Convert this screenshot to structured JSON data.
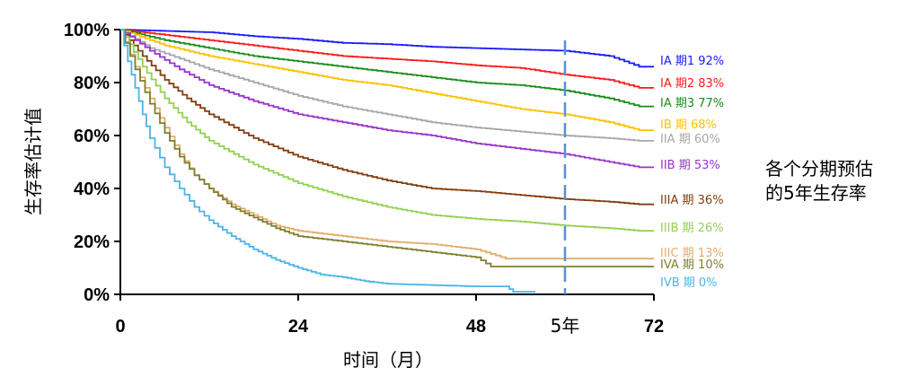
{
  "chart_data": {
    "type": "line",
    "title": "",
    "xlabel": "时间（月）",
    "ylabel": "生存率估计值",
    "xlim": [
      0,
      72
    ],
    "ylim": [
      0,
      100
    ],
    "x_ticks": [
      "0",
      "24",
      "48",
      "72"
    ],
    "x_tick_values": [
      0,
      24,
      48,
      72
    ],
    "y_ticks": [
      "0%",
      "20%",
      "40%",
      "60%",
      "80%",
      "100%"
    ],
    "y_tick_values": [
      0,
      20,
      40,
      60,
      80,
      100
    ],
    "marker": {
      "label": "5年",
      "x": 60
    },
    "annotation": [
      "各个分期预估",
      "的5年生存率"
    ],
    "series": [
      {
        "name": "IA 期1",
        "label": "IA 期1 92%",
        "color": "#1a1aff",
        "x": [
          0,
          6,
          12,
          18,
          24,
          30,
          36,
          42,
          48,
          54,
          60,
          66,
          70,
          72
        ],
        "y": [
          100,
          99.5,
          99,
          97.5,
          96.5,
          95,
          94.5,
          93.5,
          93,
          92.5,
          92,
          90,
          86,
          86
        ]
      },
      {
        "name": "IA 期2",
        "label": "IA 期2 83%",
        "color": "#ff1a1a",
        "x": [
          0,
          6,
          12,
          18,
          24,
          30,
          36,
          42,
          48,
          54,
          60,
          66,
          70,
          72
        ],
        "y": [
          100,
          98,
          96,
          94,
          92,
          90,
          89,
          88,
          86.5,
          85.5,
          83,
          81,
          78,
          78
        ]
      },
      {
        "name": "IA 期3",
        "label": "IA 期3 77%",
        "color": "#1a8c1a",
        "x": [
          0,
          6,
          12,
          18,
          24,
          30,
          36,
          42,
          48,
          54,
          60,
          66,
          70,
          72
        ],
        "y": [
          100,
          96,
          93,
          90,
          88,
          86,
          84,
          82,
          80,
          79,
          77,
          74,
          71,
          71
        ]
      },
      {
        "name": "IB 期",
        "label": "IB 期  68%",
        "color": "#ffc000",
        "x": [
          0,
          6,
          12,
          18,
          24,
          30,
          36,
          42,
          48,
          54,
          60,
          66,
          70,
          72
        ],
        "y": [
          100,
          94,
          90,
          87,
          84,
          81,
          79,
          76,
          73,
          70,
          68,
          65,
          62,
          62
        ]
      },
      {
        "name": "IIA 期",
        "label": "IIA 期 60%",
        "color": "#a6a6a6",
        "x": [
          0,
          4,
          8,
          12,
          18,
          24,
          30,
          36,
          42,
          48,
          54,
          60,
          66,
          70,
          72
        ],
        "y": [
          100,
          93,
          89,
          85,
          80,
          75,
          71,
          68,
          65,
          63,
          61.5,
          60,
          59,
          58,
          58
        ]
      },
      {
        "name": "IIB 期",
        "label": "IIB 期  53%",
        "color": "#9933cc",
        "x": [
          0,
          4,
          8,
          12,
          18,
          24,
          30,
          36,
          42,
          48,
          54,
          60,
          66,
          70,
          72
        ],
        "y": [
          100,
          92,
          85,
          79,
          73,
          68,
          65,
          62,
          60,
          57,
          55,
          53,
          50,
          48,
          48
        ]
      },
      {
        "name": "IIIA 期",
        "label": "IIIA 期 36%",
        "color": "#843c0c",
        "x": [
          0,
          3,
          6,
          9,
          12,
          18,
          24,
          30,
          36,
          42,
          48,
          54,
          60,
          66,
          70,
          72
        ],
        "y": [
          100,
          90,
          81,
          74,
          68,
          59,
          52,
          47,
          43,
          40,
          39,
          37.5,
          36,
          35,
          34,
          34
        ]
      },
      {
        "name": "IIIB 期",
        "label": "IIIB 期  26%",
        "color": "#92d050",
        "x": [
          0,
          3,
          6,
          9,
          12,
          18,
          24,
          30,
          36,
          42,
          48,
          54,
          60,
          66,
          70,
          72
        ],
        "y": [
          100,
          86,
          74,
          65,
          58,
          49,
          42,
          37,
          33,
          30,
          28.5,
          27.5,
          26,
          25,
          24,
          24
        ]
      },
      {
        "name": "IIIC 期",
        "label": "IIIC 期 13%",
        "color": "#e3ac6a",
        "x": [
          0,
          2,
          4,
          6,
          8,
          10,
          12,
          15,
          18,
          21,
          24,
          30,
          36,
          42,
          48,
          52,
          54,
          60,
          66,
          72
        ],
        "y": [
          100,
          86,
          74,
          63,
          53,
          45,
          40,
          34,
          30,
          26,
          24,
          22,
          20,
          19,
          17,
          13.5,
          13.5,
          13.5,
          13.5,
          13.5
        ]
      },
      {
        "name": "IVA 期",
        "label": "IVA 期 10%",
        "color": "#7f7f2f",
        "x": [
          0,
          2,
          4,
          6,
          8,
          10,
          12,
          15,
          18,
          21,
          24,
          30,
          36,
          42,
          48,
          50,
          54,
          60,
          66,
          72
        ],
        "y": [
          100,
          85,
          72,
          61,
          52,
          45,
          40,
          33,
          29,
          25,
          22,
          20,
          18,
          16,
          14,
          10.5,
          10.5,
          10.5,
          10.5,
          10.5
        ]
      },
      {
        "name": "IVB 期",
        "label": "IVB 期 0%",
        "color": "#4db3e6",
        "x": [
          0,
          1,
          2,
          3,
          4,
          6,
          8,
          10,
          12,
          15,
          18,
          21,
          24,
          27,
          30,
          33,
          36,
          42,
          48,
          52,
          53,
          56
        ],
        "y": [
          100,
          88,
          78,
          68,
          59,
          48,
          40,
          33,
          28,
          22,
          17,
          13,
          10,
          7.5,
          6.5,
          5,
          4,
          3.5,
          3,
          3,
          1,
          1
        ]
      }
    ]
  }
}
